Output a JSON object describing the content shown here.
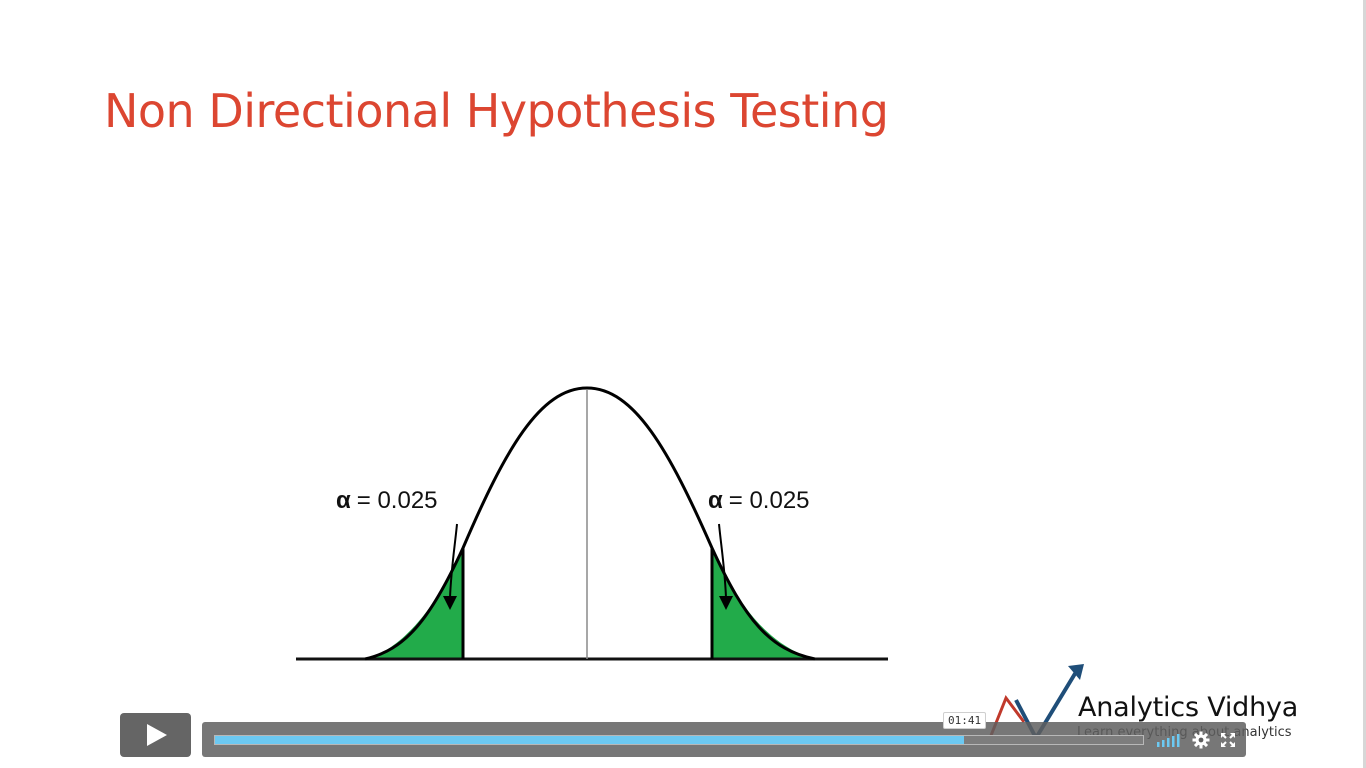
{
  "slide": {
    "title": "Non Directional Hypothesis Testing"
  },
  "figure": {
    "left_label": {
      "symbol": "α",
      "value": "= 0.025"
    },
    "right_label": {
      "symbol": "α",
      "value": "= 0.025"
    },
    "tail_color": "#22ab4a",
    "curve_color": "#000000"
  },
  "watermark": {
    "name": "Analytics Vidhya",
    "tagline": "Learn everything about analytics",
    "accent_color": "#1f4e79",
    "secondary_color": "#c0392b"
  },
  "player": {
    "play_icon": "play-icon",
    "current_time": "01:41",
    "progress_fraction": 0.807,
    "progress_color": "#6cc9f2",
    "volume_icon": "volume-icon",
    "settings_icon": "gear-icon",
    "fullscreen_icon": "fullscreen-icon"
  }
}
